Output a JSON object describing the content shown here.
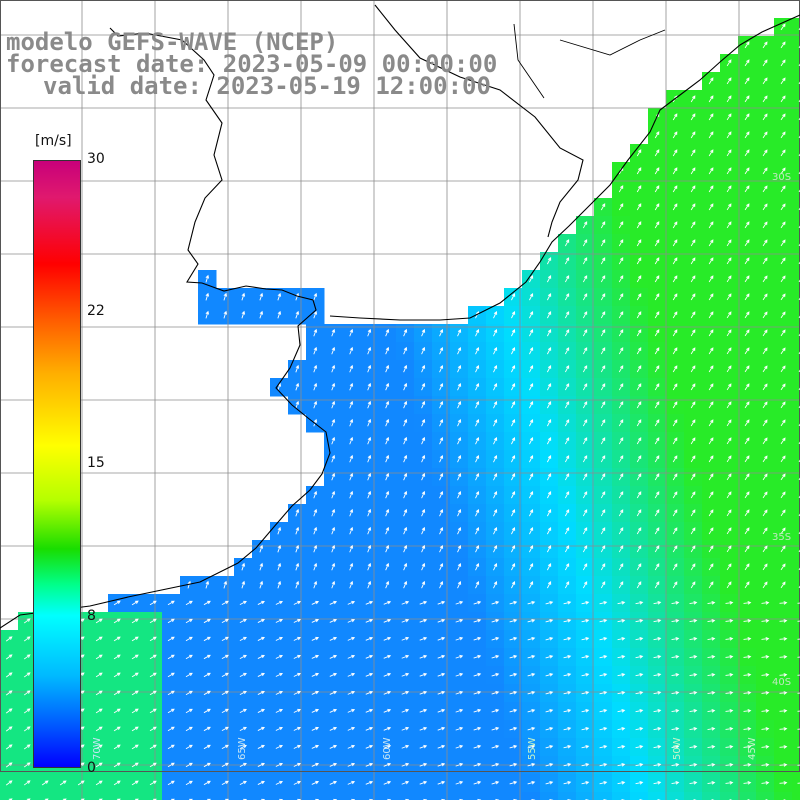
{
  "titles": {
    "model": "modelo GEFS-WAVE (NCEP)",
    "forecast": "forecast date: 2023-05-09 00:00:00",
    "valid": "valid date: 2023-05-19 12:00:00"
  },
  "colorbar": {
    "unit": "[m/s]",
    "ticks": [
      "30",
      "22",
      "15",
      "8",
      "0"
    ],
    "range": [
      0,
      30
    ],
    "palette": [
      "#c8007a",
      "#ff0000",
      "#ff8000",
      "#ffff00",
      "#19dd00",
      "#00ffff",
      "#00b9ff",
      "#0000ff"
    ]
  },
  "map": {
    "field": "wind speed with direction arrows",
    "land_color": "#ffffff",
    "grid_color": "#8c8c8c",
    "coast_color": "#000000",
    "arrow_color": "#ffffff",
    "lat_labels": [
      "30S",
      "35S",
      "40S"
    ],
    "lon_labels": [
      "70W",
      "65W",
      "60W",
      "55W",
      "50W",
      "45W"
    ]
  }
}
